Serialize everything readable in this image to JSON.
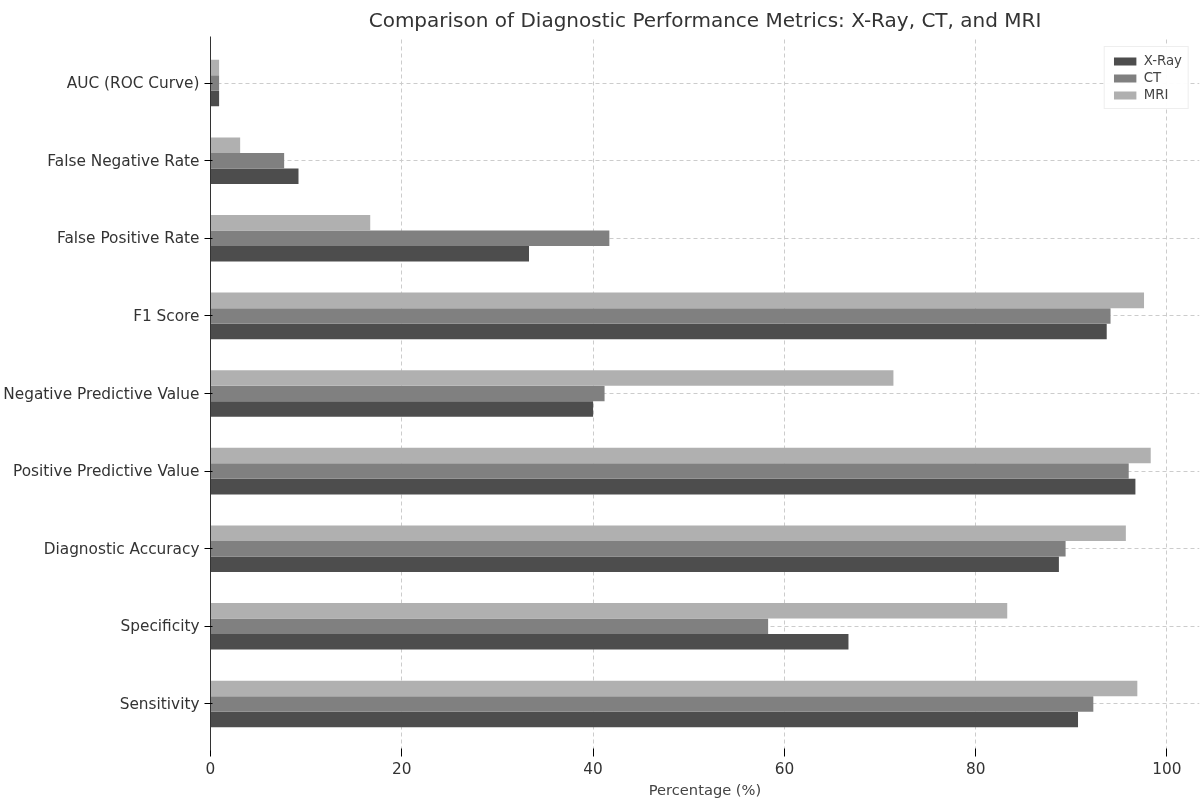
{
  "chart_data": {
    "type": "bar",
    "orientation": "horizontal",
    "title": "Comparison of Diagnostic Performance Metrics: X-Ray, CT, and MRI",
    "xlabel": "Percentage (%)",
    "categories": [
      "AUC (ROC Curve)",
      "False Negative Rate",
      "False Positive Rate",
      "F1 Score",
      "Negative Predictive Value",
      "Positive Predictive Value",
      "Diagnostic Accuracy",
      "Specificity",
      "Sensitivity"
    ],
    "series": [
      {
        "name": "X-Ray",
        "color": "#4d4d4d",
        "values": [
          0.9,
          9.2,
          33.3,
          93.7,
          40.0,
          96.7,
          88.7,
          66.7,
          90.7
        ]
      },
      {
        "name": "CT",
        "color": "#808080",
        "values": [
          0.9,
          7.7,
          41.7,
          94.1,
          41.2,
          96.0,
          89.4,
          58.3,
          92.3
        ]
      },
      {
        "name": "MRI",
        "color": "#b0b0b0",
        "values": [
          0.9,
          3.1,
          16.7,
          97.6,
          71.4,
          98.3,
          95.7,
          83.3,
          96.9
        ]
      }
    ],
    "xlim": [
      0,
      103.4
    ],
    "xticks": [
      0,
      20,
      40,
      60,
      80,
      100
    ],
    "grid": true,
    "legend": "top right"
  }
}
